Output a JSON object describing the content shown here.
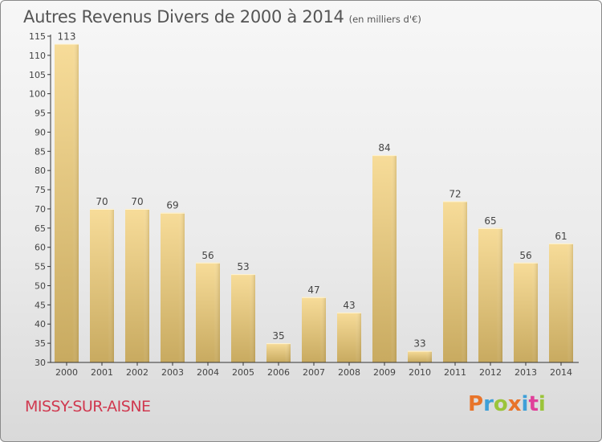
{
  "header": {
    "title": "Autres Revenus Divers de 2000 à 2014",
    "unit": "(en milliers d'€)"
  },
  "footer": {
    "commune": "MISSY-SUR-AISNE",
    "logo_text": "Proxiti",
    "logo_colors": [
      "#e8742a",
      "#3fa0d8",
      "#9bc43a",
      "#e8742a",
      "#3fa0d8",
      "#e0409a",
      "#9bc43a"
    ]
  },
  "colors": {
    "bar_top": "#f7dc99",
    "bar_bottom": "#c8aa60",
    "axis": "#333333",
    "text": "#444444",
    "commune": "#d0384f"
  },
  "chart_data": {
    "type": "bar",
    "categories": [
      "2000",
      "2001",
      "2002",
      "2003",
      "2004",
      "2005",
      "2006",
      "2007",
      "2008",
      "2009",
      "2010",
      "2011",
      "2012",
      "2013",
      "2014"
    ],
    "values": [
      113,
      70,
      70,
      69,
      56,
      53,
      35,
      47,
      43,
      84,
      33,
      72,
      65,
      56,
      61
    ],
    "ylim": [
      30,
      115
    ],
    "yticks": [
      30,
      35,
      40,
      45,
      50,
      55,
      60,
      65,
      70,
      75,
      80,
      85,
      90,
      95,
      100,
      105,
      110,
      115
    ],
    "grid": false,
    "legend": "none"
  }
}
